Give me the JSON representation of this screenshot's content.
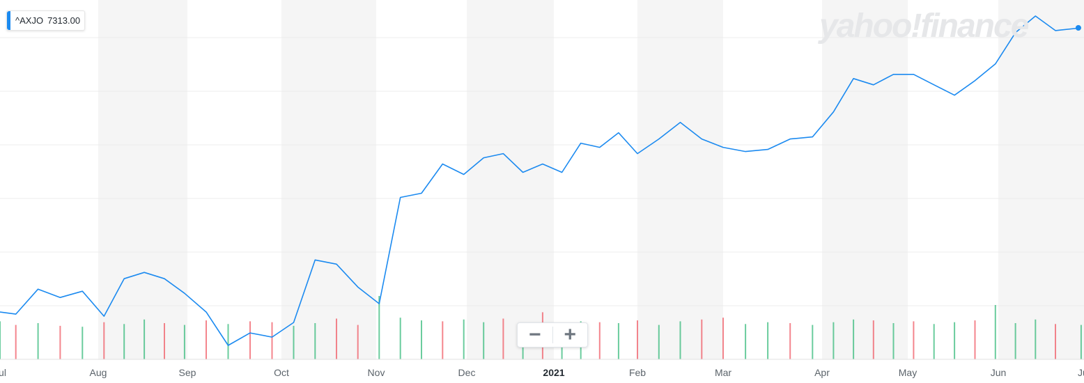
{
  "legend": {
    "symbol": "^AXJO",
    "price": "7313.00",
    "color": "#1b8af0"
  },
  "watermark": "yahoo!finance",
  "zoom": {
    "minus": "−",
    "plus": "+"
  },
  "colors": {
    "line": "#1b8af0",
    "up_volume": "#2bb673",
    "down_volume": "#f0515c",
    "band": "#f5f5f5",
    "grid": "#ececec",
    "axis_text": "#5b636a"
  },
  "chart_data": {
    "type": "line",
    "title": "",
    "xlabel": "",
    "ylabel": "",
    "x_tick_labels": [
      "Jul",
      "Aug",
      "Sep",
      "Oct",
      "Nov",
      "Dec",
      "2021",
      "Feb",
      "Mar",
      "Apr",
      "May",
      "Jun",
      "Jul"
    ],
    "grid": true,
    "series": [
      {
        "name": "^AXJO",
        "color": "#1b8af0",
        "x": [
          "2020-07-01",
          "2020-07-06",
          "2020-07-13",
          "2020-07-20",
          "2020-07-27",
          "2020-08-03",
          "2020-08-10",
          "2020-08-17",
          "2020-08-24",
          "2020-08-31",
          "2020-09-07",
          "2020-09-14",
          "2020-09-21",
          "2020-09-28",
          "2020-10-05",
          "2020-10-12",
          "2020-10-19",
          "2020-10-26",
          "2020-11-02",
          "2020-11-09",
          "2020-11-16",
          "2020-11-23",
          "2020-11-30",
          "2020-12-07",
          "2020-12-14",
          "2020-12-21",
          "2020-12-28",
          "2021-01-04",
          "2021-01-11",
          "2021-01-18",
          "2021-01-25",
          "2021-02-01",
          "2021-02-08",
          "2021-02-15",
          "2021-02-22",
          "2021-03-01",
          "2021-03-08",
          "2021-03-15",
          "2021-03-22",
          "2021-03-29",
          "2021-04-05",
          "2021-04-12",
          "2021-04-19",
          "2021-04-26",
          "2021-05-03",
          "2021-05-10",
          "2021-05-17",
          "2021-05-24",
          "2021-05-31",
          "2021-06-07",
          "2021-06-14",
          "2021-06-21",
          "2021-06-30"
        ],
        "y": [
          5950,
          5940,
          6060,
          6020,
          6050,
          5930,
          6110,
          6140,
          6110,
          6040,
          5950,
          5790,
          5850,
          5830,
          5900,
          6200,
          6180,
          6070,
          5990,
          6500,
          6520,
          6660,
          6610,
          6690,
          6710,
          6620,
          6660,
          6620,
          6760,
          6740,
          6810,
          6710,
          6780,
          6860,
          6780,
          6740,
          6720,
          6730,
          6780,
          6790,
          6910,
          7070,
          7040,
          7090,
          7090,
          7040,
          6990,
          7060,
          7140,
          7290,
          7370,
          7300,
          7313
        ]
      }
    ],
    "volume": {
      "name": "Volume",
      "up_color": "#2bb673",
      "down_color": "#f0515c",
      "values": [
        42,
        38,
        40,
        37,
        36,
        41,
        39,
        44,
        40,
        38,
        43,
        39,
        42,
        41,
        37,
        40,
        45,
        38,
        70,
        46,
        43,
        42,
        44,
        41,
        45,
        40,
        52,
        39,
        42,
        41,
        40,
        43,
        38,
        42,
        44,
        46,
        39,
        41,
        40,
        38,
        41,
        44,
        43,
        40,
        42,
        39,
        41,
        43,
        60,
        40,
        44,
        39,
        38
      ],
      "directions": [
        "u",
        "d",
        "u",
        "d",
        "u",
        "d",
        "u",
        "u",
        "d",
        "u",
        "d",
        "u",
        "d",
        "d",
        "u",
        "u",
        "d",
        "d",
        "u",
        "u",
        "u",
        "d",
        "u",
        "u",
        "d",
        "u",
        "d",
        "u",
        "u",
        "d",
        "u",
        "d",
        "u",
        "u",
        "d",
        "d",
        "u",
        "u",
        "d",
        "u",
        "u",
        "u",
        "d",
        "u",
        "d",
        "u",
        "u",
        "d",
        "u",
        "u",
        "u",
        "d",
        "u"
      ]
    }
  }
}
